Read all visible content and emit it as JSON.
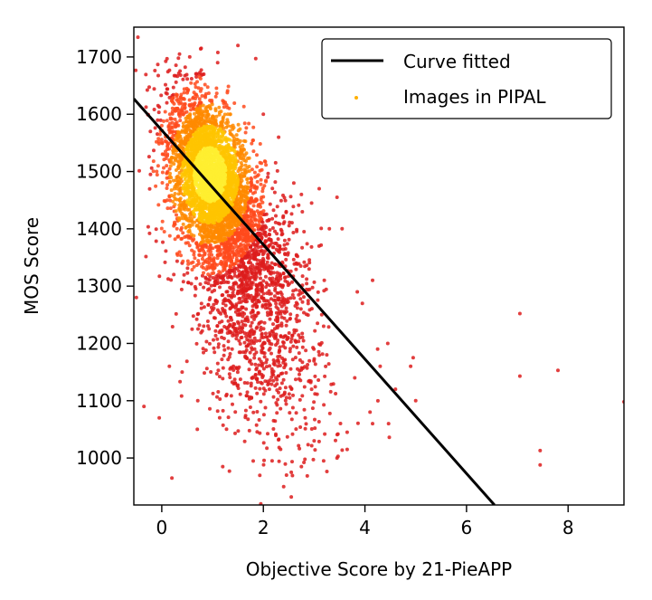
{
  "chart_data": {
    "type": "scatter",
    "title": "",
    "xlabel": "Objective Score by 21-PieAPP",
    "ylabel": "MOS Score",
    "xlim": [
      -0.55,
      9.1
    ],
    "ylim": [
      918,
      1752
    ],
    "xticks": [
      0,
      2,
      4,
      6,
      8
    ],
    "yticks": [
      1000,
      1100,
      1200,
      1300,
      1400,
      1500,
      1600,
      1700
    ],
    "grid": false,
    "legend_position": "top-right",
    "legend": [
      {
        "label": "Curve fitted",
        "kind": "line",
        "color": "#000000"
      },
      {
        "label": "Images in PIPAL",
        "kind": "point",
        "color": "#ffb000"
      }
    ],
    "series": [
      {
        "name": "Curve fitted",
        "kind": "line",
        "color": "#000000",
        "x": [
          -0.55,
          6.55
        ],
        "y": [
          1627,
          918
        ]
      },
      {
        "name": "Images in PIPAL",
        "kind": "scatter",
        "color_scale": [
          "#dd1c1c",
          "#ff4a1c",
          "#ff8a00",
          "#ffc400",
          "#ffee30"
        ],
        "clusters": [
          {
            "cx": 0.95,
            "cy": 1490,
            "sx": 0.42,
            "sy": 72,
            "n": 3200
          },
          {
            "cx": 1.6,
            "cy": 1360,
            "sx": 0.62,
            "sy": 95,
            "n": 1300
          },
          {
            "cx": 1.9,
            "cy": 1190,
            "sx": 0.72,
            "sy": 100,
            "n": 600
          }
        ],
        "outliers": [
          [
            -0.5,
            1280
          ],
          [
            -0.35,
            1090
          ],
          [
            -0.05,
            1070
          ],
          [
            0.15,
            1160
          ],
          [
            0.2,
            965
          ],
          [
            0.35,
            1705
          ],
          [
            0.4,
            1150
          ],
          [
            0.55,
            1700
          ],
          [
            0.7,
            1050
          ],
          [
            0.85,
            1755
          ],
          [
            1.1,
            1690
          ],
          [
            1.35,
            1600
          ],
          [
            1.5,
            1720
          ],
          [
            1.85,
            1697
          ],
          [
            2.0,
            1600
          ],
          [
            2.3,
            1560
          ],
          [
            2.6,
            1480
          ],
          [
            2.75,
            1460
          ],
          [
            2.95,
            1445
          ],
          [
            3.1,
            1470
          ],
          [
            3.3,
            1400
          ],
          [
            3.45,
            1455
          ],
          [
            3.55,
            1400
          ],
          [
            3.85,
            1290
          ],
          [
            3.95,
            1270
          ],
          [
            4.15,
            1310
          ],
          [
            4.25,
            1190
          ],
          [
            4.3,
            1160
          ],
          [
            4.45,
            1200
          ],
          [
            4.6,
            1120
          ],
          [
            4.9,
            1160
          ],
          [
            4.95,
            1175
          ],
          [
            5.0,
            1100
          ],
          [
            4.15,
            1060
          ],
          [
            3.65,
            1045
          ],
          [
            3.65,
            1015
          ],
          [
            3.45,
            1000
          ],
          [
            3.0,
            1030
          ],
          [
            2.75,
            985
          ],
          [
            2.55,
            975
          ],
          [
            2.4,
            950
          ],
          [
            2.55,
            932
          ],
          [
            1.95,
            920
          ],
          [
            1.2,
            985
          ],
          [
            3.25,
            1180
          ],
          [
            3.15,
            1250
          ],
          [
            2.95,
            1120
          ],
          [
            3.8,
            1140
          ],
          [
            4.1,
            1080
          ],
          [
            7.05,
            1252
          ],
          [
            7.05,
            1143
          ],
          [
            7.8,
            1153
          ],
          [
            7.45,
            1013
          ],
          [
            7.45,
            988
          ],
          [
            9.1,
            1098
          ],
          [
            2.65,
            1340
          ],
          [
            2.9,
            1330
          ],
          [
            3.2,
            1310
          ],
          [
            2.45,
            1430
          ],
          [
            2.8,
            1395
          ],
          [
            0.1,
            1620
          ],
          [
            0.0,
            1580
          ],
          [
            -0.1,
            1500
          ],
          [
            0.05,
            1395
          ],
          [
            0.15,
            1520
          ],
          [
            0.25,
            1470
          ],
          [
            0.3,
            1400
          ],
          [
            0.4,
            1340
          ]
        ]
      }
    ]
  }
}
